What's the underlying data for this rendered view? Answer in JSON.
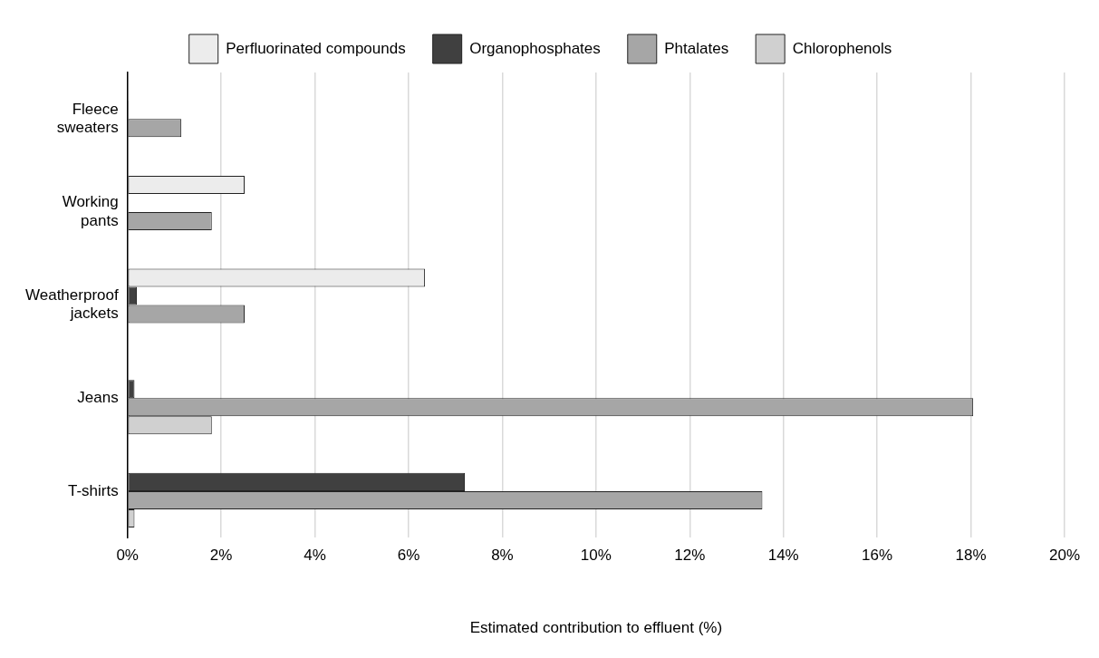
{
  "chart_data": {
    "type": "bar",
    "orientation": "horizontal",
    "xlabel": "Estimated contribution to effluent (%)",
    "categories": [
      "Fleece sweaters",
      "Working pants",
      "Weatherproof jackets",
      "Jeans",
      "T-shirts"
    ],
    "series": [
      {
        "name": "Perfluorinated compounds",
        "color": "#ececec",
        "values": [
          null,
          2.5,
          6.35,
          null,
          null
        ]
      },
      {
        "name": "Organophosphates",
        "color": "#404040",
        "values": [
          0.02,
          null,
          0.2,
          0.15,
          7.2
        ]
      },
      {
        "name": "Phtalates",
        "color": "#a6a6a6",
        "values": [
          1.15,
          1.8,
          2.5,
          18.05,
          13.55
        ]
      },
      {
        "name": "Chlorophenols",
        "color": "#d0d0d0",
        "values": [
          null,
          null,
          null,
          1.8,
          0.15
        ]
      }
    ],
    "xlim": [
      0,
      20
    ],
    "xticks": [
      {
        "value": 0,
        "label": "0%"
      },
      {
        "value": 2,
        "label": "2%"
      },
      {
        "value": 4,
        "label": "4%"
      },
      {
        "value": 6,
        "label": "6%"
      },
      {
        "value": 8,
        "label": "8%"
      },
      {
        "value": 10,
        "label": "10%"
      },
      {
        "value": 12,
        "label": "12%"
      },
      {
        "value": 14,
        "label": "14%"
      },
      {
        "value": 16,
        "label": "16%"
      },
      {
        "value": 18,
        "label": "18%"
      },
      {
        "value": 20,
        "label": "20%"
      }
    ],
    "grid": "x",
    "legend": "top"
  }
}
